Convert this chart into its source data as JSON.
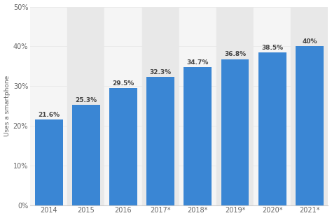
{
  "categories": [
    "2014",
    "2015",
    "2016",
    "2017*",
    "2018*",
    "2019*",
    "2020*",
    "2021*"
  ],
  "values": [
    21.6,
    25.3,
    29.5,
    32.3,
    34.7,
    36.8,
    38.5,
    40.0
  ],
  "labels": [
    "21.6%",
    "25.3%",
    "29.5%",
    "32.3%",
    "34.7%",
    "36.8%",
    "38.5%",
    "40%"
  ],
  "bar_color": "#3a86d4",
  "background_color": "#ffffff",
  "plot_bg_color": "#f5f5f5",
  "ylabel": "Uses a smartphone",
  "ylim": [
    0,
    50
  ],
  "yticks": [
    0,
    10,
    20,
    30,
    40,
    50
  ],
  "ytick_labels": [
    "0%",
    "10%",
    "20%",
    "30%",
    "40%",
    "50%"
  ],
  "grid_color": "#e8e8e8",
  "label_fontsize": 6.5,
  "ylabel_fontsize": 6.5,
  "tick_fontsize": 7.0,
  "bar_width": 0.75,
  "stripe_color": "#e8e8e8",
  "unstripe_color": "#f5f5f5"
}
